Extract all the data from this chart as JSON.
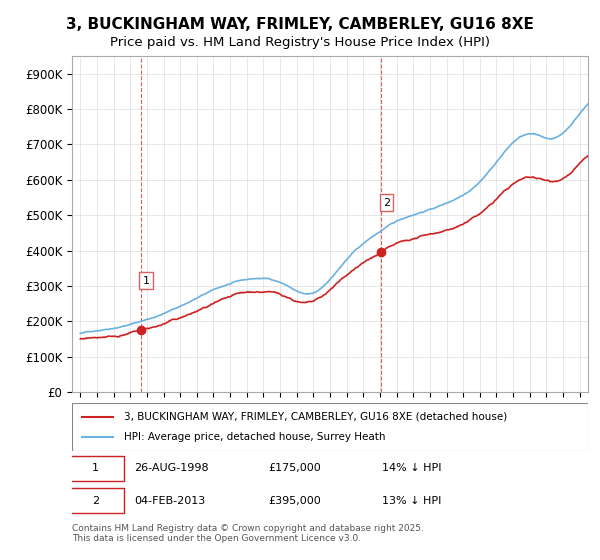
{
  "title": "3, BUCKINGHAM WAY, FRIMLEY, CAMBERLEY, GU16 8XE",
  "subtitle": "Price paid vs. HM Land Registry's House Price Index (HPI)",
  "ylabel": "",
  "ylim": [
    0,
    950000
  ],
  "yticks": [
    0,
    100000,
    200000,
    300000,
    400000,
    500000,
    600000,
    700000,
    800000,
    900000
  ],
  "ytick_labels": [
    "£0",
    "£100K",
    "£200K",
    "£300K",
    "£400K",
    "£500K",
    "£600K",
    "£700K",
    "£800K",
    "£900K"
  ],
  "sale1_date": 1998.65,
  "sale1_price": 175000,
  "sale1_label": "1",
  "sale2_date": 2013.09,
  "sale2_price": 395000,
  "sale2_label": "2",
  "hpi_color": "#6ab0e0",
  "sale_color": "#cc2222",
  "vline_color": "#e06060",
  "dot_color": "#cc2222",
  "legend_label_sale": "3, BUCKINGHAM WAY, FRIMLEY, CAMBERLEY, GU16 8XE (detached house)",
  "legend_label_hpi": "HPI: Average price, detached house, Surrey Heath",
  "table_row1": [
    "1",
    "26-AUG-1998",
    "£175,000",
    "14% ↓ HPI"
  ],
  "table_row2": [
    "2",
    "04-FEB-2013",
    "£395,000",
    "13% ↓ HPI"
  ],
  "footnote": "Contains HM Land Registry data © Crown copyright and database right 2025.\nThis data is licensed under the Open Government Licence v3.0.",
  "background_color": "#ffffff",
  "grid_color": "#dddddd",
  "title_fontsize": 11,
  "subtitle_fontsize": 9.5,
  "tick_fontsize": 8.5,
  "xmin": 1994.5,
  "xmax": 2025.5
}
